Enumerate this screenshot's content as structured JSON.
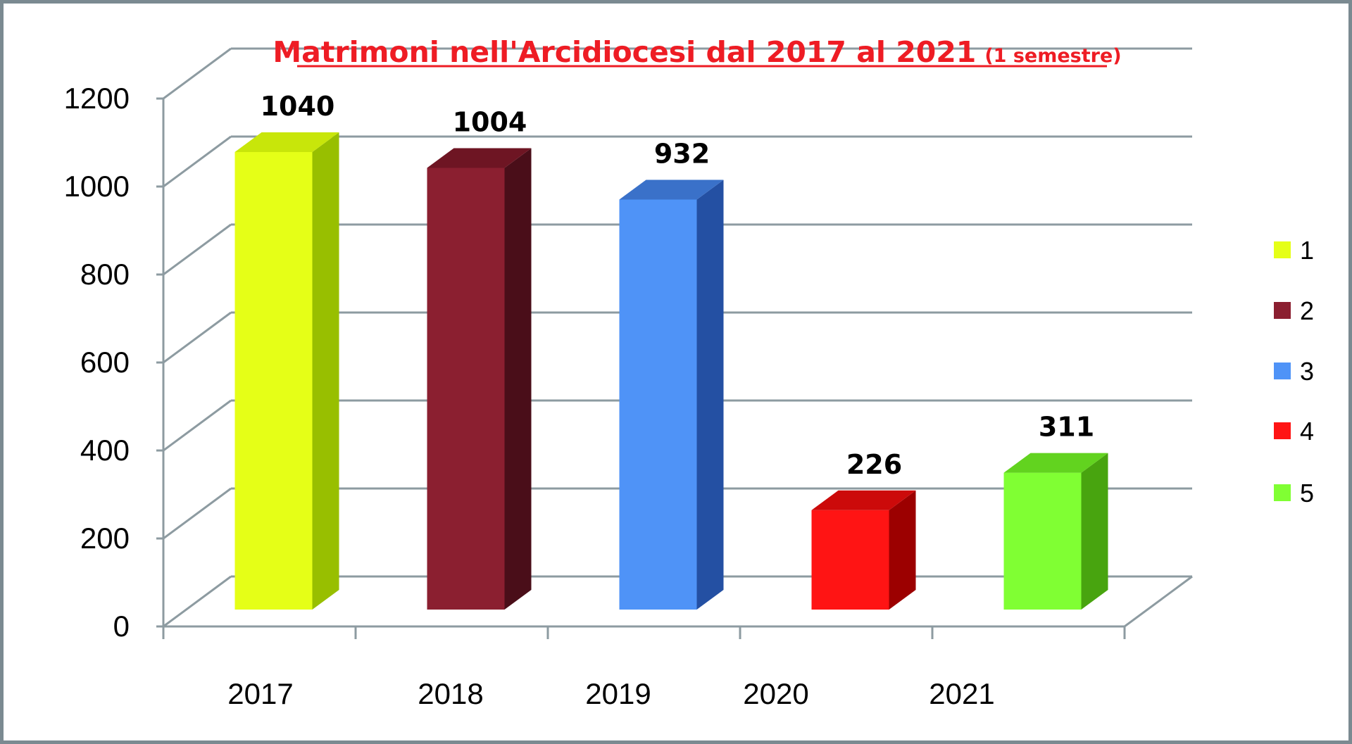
{
  "chart_data": {
    "type": "bar",
    "title": "Matrimoni nell'Arcidiocesi dal 2017 al 2021",
    "subtitle": "(1 semestre)",
    "xlabel": "",
    "ylabel": "",
    "categories": [
      "2017",
      "2018",
      "2019",
      "2020",
      "2021"
    ],
    "values": [
      1040,
      1004,
      932,
      226,
      311
    ],
    "data_labels": [
      "1040",
      "1004",
      "932",
      "226",
      "311"
    ],
    "ylim": [
      0,
      1200
    ],
    "yticks": [
      "0",
      "200",
      "400",
      "600",
      "800",
      "1000",
      "1200"
    ],
    "grid": true,
    "three_d": true,
    "legend": {
      "placement": "right",
      "entries": [
        "1",
        "2",
        "3",
        "4",
        "5"
      ]
    },
    "colors": {
      "front": [
        "#e5ff17",
        "#8b1f30",
        "#4f93f7",
        "#ff1414",
        "#80ff33"
      ],
      "side": [
        "#98bf00",
        "#4a0e19",
        "#2450a3",
        "#9c0000",
        "#48a40f"
      ],
      "top": [
        "#c8e60a",
        "#6e1523",
        "#3a71c9",
        "#cc0a0a",
        "#62d31f"
      ],
      "grid": "#8d9ba1",
      "title": "#ee1c24",
      "frame": "#7b8a91"
    }
  }
}
